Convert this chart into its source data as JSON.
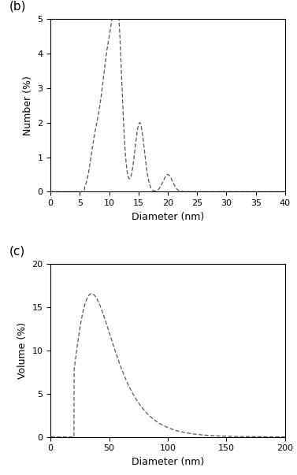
{
  "panel_b": {
    "label": "(b)",
    "xlabel": "Diameter (nm)",
    "ylabel": "Number (%)",
    "xlim": [
      0,
      40
    ],
    "ylim": [
      0,
      5
    ],
    "xticks": [
      0,
      5,
      10,
      15,
      20,
      25,
      30,
      35,
      40
    ],
    "yticks": [
      0,
      1,
      2,
      3,
      4,
      5
    ],
    "line_color": "#555555",
    "line_style": "--",
    "line_width": 0.9
  },
  "panel_c": {
    "label": "(c)",
    "xlabel": "Diameter (nm)",
    "ylabel": "Volume (%)",
    "xlim": [
      0,
      200
    ],
    "ylim": [
      0,
      20
    ],
    "xticks": [
      0,
      50,
      100,
      150,
      200
    ],
    "yticks": [
      0,
      5,
      10,
      15,
      20
    ],
    "line_color": "#555555",
    "line_style": "--",
    "line_width": 0.9
  },
  "background_color": "#ffffff",
  "font_size_label": 9,
  "font_size_panel": 11,
  "font_size_tick": 8
}
